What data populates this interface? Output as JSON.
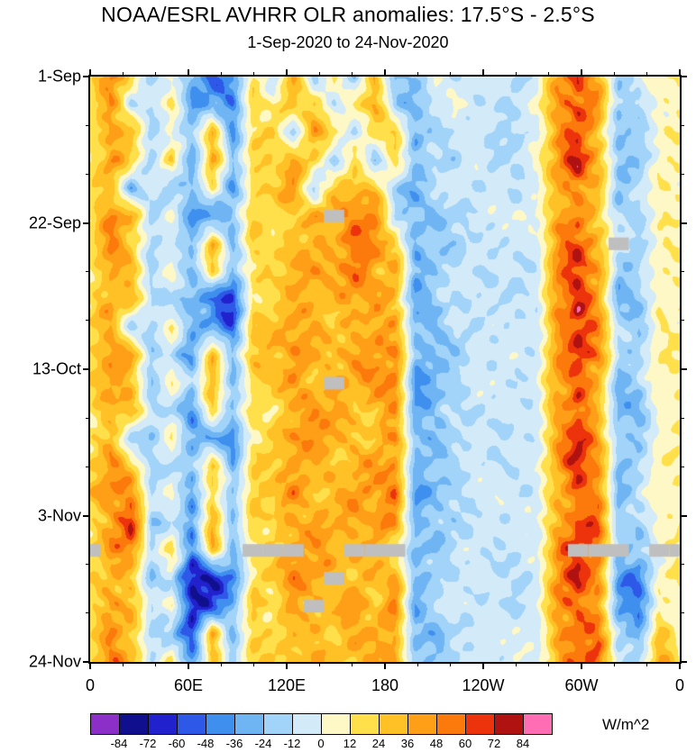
{
  "chart_data": {
    "type": "heatmap",
    "title": "NOAA/ESRL AVHRR OLR anomalies: 17.5°S - 2.5°S",
    "subtitle": "1-Sep-2020 to 24-Nov-2020",
    "xlabel": "",
    "ylabel": "",
    "x_axis": {
      "range_deg": [
        0,
        360
      ],
      "minor_step_deg": 20,
      "ticks": [
        {
          "deg": 0,
          "label": "0"
        },
        {
          "deg": 60,
          "label": "60E"
        },
        {
          "deg": 120,
          "label": "120E"
        },
        {
          "deg": 180,
          "label": "180"
        },
        {
          "deg": 240,
          "label": "120W"
        },
        {
          "deg": 300,
          "label": "60W"
        },
        {
          "deg": 360,
          "label": "0"
        }
      ]
    },
    "y_axis": {
      "range_days": [
        0,
        84
      ],
      "minor_step_days": 7,
      "top_to_bottom": true,
      "ticks": [
        {
          "day": 0,
          "label": "1-Sep"
        },
        {
          "day": 21,
          "label": "22-Sep"
        },
        {
          "day": 42,
          "label": "13-Oct"
        },
        {
          "day": 63,
          "label": "3-Nov"
        },
        {
          "day": 84,
          "label": "24-Nov"
        }
      ]
    },
    "colorbar": {
      "units": "W/m^2",
      "levels": [
        -84,
        -72,
        -60,
        -48,
        -36,
        -24,
        -12,
        0,
        12,
        24,
        36,
        48,
        60,
        72,
        84
      ],
      "colors": [
        "#8B2FC8",
        "#10108F",
        "#2121CD",
        "#2E59E8",
        "#3F8FEF",
        "#6FB5F4",
        "#A2D3F8",
        "#D3EAF9",
        "#FEF8C7",
        "#FFE04A",
        "#FFC125",
        "#FF9E17",
        "#FB7A0B",
        "#ED330C",
        "#B01212",
        "#FF6EB4"
      ],
      "missing_color": "#BFBFBF"
    },
    "grid": {
      "note": "OLR anomaly (W/m^2) estimated on a 30-point longitude (0-360) by 22-step time (1-Sep to 24-Nov-2020) grid; null = missing data (gray)",
      "lon_points": 30,
      "time_points": 22,
      "values": [
        [
          12,
          45,
          20,
          -18,
          8,
          -30,
          -55,
          -40,
          15,
          -12,
          38,
          -15,
          20,
          -25,
          30,
          -35,
          -20,
          8,
          -14,
          -4,
          -10,
          -16,
          -6,
          42,
          72,
          35,
          -22,
          -8,
          6,
          14
        ],
        [
          18,
          55,
          -15,
          -10,
          15,
          -40,
          -25,
          -50,
          22,
          10,
          30,
          25,
          -18,
          15,
          40,
          -20,
          -28,
          -12,
          6,
          -8,
          -14,
          -10,
          4,
          50,
          65,
          45,
          -15,
          -20,
          10,
          8
        ],
        [
          25,
          35,
          40,
          -22,
          -8,
          -15,
          30,
          -35,
          18,
          25,
          -20,
          35,
          22,
          -15,
          25,
          35,
          -35,
          -20,
          -10,
          -6,
          -8,
          -16,
          -4,
          38,
          58,
          25,
          -30,
          -12,
          4,
          12
        ],
        [
          10,
          48,
          25,
          -15,
          20,
          -45,
          40,
          -20,
          28,
          15,
          35,
          20,
          -25,
          30,
          -30,
          25,
          -22,
          -15,
          -18,
          -4,
          -12,
          -8,
          6,
          45,
          70,
          40,
          -18,
          -25,
          8,
          6
        ],
        [
          20,
          30,
          -30,
          -8,
          -18,
          -25,
          20,
          -40,
          12,
          30,
          45,
          -15,
          30,
          20,
          35,
          -25,
          -30,
          -10,
          -8,
          -10,
          -6,
          -14,
          -8,
          35,
          55,
          30,
          -25,
          -15,
          12,
          10
        ],
        [
          15,
          42,
          35,
          -20,
          10,
          -35,
          -45,
          -25,
          20,
          18,
          30,
          40,
          null,
          45,
          50,
          -15,
          -25,
          -22,
          -12,
          -6,
          -10,
          -8,
          4,
          40,
          62,
          20,
          -20,
          -18,
          6,
          14
        ],
        [
          22,
          50,
          20,
          -12,
          -15,
          -20,
          35,
          -30,
          25,
          12,
          40,
          30,
          35,
          55,
          45,
          30,
          -35,
          -15,
          -20,
          -8,
          -6,
          -12,
          -6,
          48,
          68,
          35,
          null,
          -22,
          10,
          8
        ],
        [
          8,
          35,
          45,
          -25,
          12,
          -40,
          25,
          -15,
          15,
          28,
          25,
          45,
          40,
          60,
          35,
          40,
          -28,
          -25,
          -10,
          -12,
          -8,
          -6,
          -10,
          42,
          60,
          45,
          -22,
          -10,
          4,
          12
        ],
        [
          18,
          45,
          30,
          -10,
          -20,
          -30,
          -50,
          -65,
          20,
          20,
          35,
          25,
          30,
          40,
          55,
          25,
          -40,
          -20,
          -15,
          -6,
          -12,
          -10,
          -4,
          38,
          72,
          30,
          -28,
          -18,
          8,
          6
        ],
        [
          25,
          38,
          -20,
          -18,
          15,
          -25,
          -35,
          -55,
          25,
          35,
          45,
          35,
          25,
          30,
          40,
          45,
          -30,
          -28,
          -8,
          -10,
          -6,
          -14,
          -8,
          45,
          75,
          50,
          -15,
          -25,
          12,
          10
        ],
        [
          15,
          30,
          40,
          -15,
          -10,
          -35,
          30,
          -25,
          30,
          25,
          50,
          40,
          35,
          45,
          30,
          50,
          -25,
          -15,
          -20,
          -8,
          -10,
          -8,
          -6,
          50,
          68,
          60,
          -20,
          -15,
          6,
          14
        ],
        [
          20,
          45,
          25,
          -22,
          18,
          -20,
          40,
          -35,
          18,
          30,
          40,
          30,
          null,
          35,
          45,
          40,
          -35,
          -30,
          -12,
          -6,
          -8,
          -12,
          -4,
          42,
          62,
          35,
          -30,
          -20,
          10,
          8
        ],
        [
          12,
          40,
          35,
          -12,
          -15,
          -45,
          25,
          -20,
          22,
          15,
          30,
          45,
          40,
          25,
          35,
          45,
          -40,
          -25,
          -15,
          -10,
          -12,
          -6,
          -8,
          38,
          58,
          25,
          -25,
          -28,
          4,
          12
        ],
        [
          22,
          35,
          -25,
          -20,
          10,
          -30,
          -40,
          -45,
          15,
          25,
          45,
          35,
          30,
          40,
          25,
          55,
          -30,
          -35,
          -10,
          -8,
          -6,
          -10,
          -6,
          45,
          65,
          40,
          -18,
          -15,
          8,
          10
        ],
        [
          18,
          50,
          30,
          -15,
          -20,
          -25,
          35,
          -30,
          28,
          20,
          35,
          40,
          25,
          30,
          45,
          40,
          -25,
          -20,
          -18,
          -6,
          -10,
          -8,
          -4,
          40,
          70,
          55,
          -25,
          -20,
          12,
          6
        ],
        [
          25,
          42,
          45,
          -10,
          15,
          -40,
          20,
          -25,
          20,
          30,
          50,
          30,
          35,
          45,
          30,
          50,
          -35,
          -25,
          -12,
          -10,
          -8,
          -12,
          -8,
          35,
          60,
          45,
          -30,
          -12,
          6,
          10
        ],
        [
          15,
          38,
          68,
          -20,
          -12,
          -30,
          40,
          -35,
          25,
          18,
          40,
          45,
          30,
          35,
          40,
          45,
          -28,
          -18,
          -15,
          -8,
          -12,
          -6,
          -6,
          42,
          72,
          60,
          -20,
          -25,
          10,
          14
        ],
        [
          null,
          45,
          55,
          -15,
          18,
          -45,
          30,
          -20,
          null,
          null,
          null,
          40,
          35,
          null,
          null,
          null,
          -30,
          -28,
          -10,
          -6,
          -8,
          -10,
          -4,
          48,
          null,
          null,
          null,
          -18,
          null,
          null
        ],
        [
          20,
          35,
          30,
          -25,
          -15,
          -88,
          -70,
          -40,
          20,
          25,
          45,
          35,
          null,
          30,
          35,
          40,
          -25,
          -22,
          -14,
          -10,
          -6,
          -8,
          -8,
          40,
          65,
          50,
          -35,
          -45,
          8,
          10
        ],
        [
          15,
          48,
          40,
          -12,
          10,
          -75,
          -55,
          -25,
          28,
          15,
          35,
          null,
          30,
          45,
          25,
          50,
          -35,
          -15,
          -8,
          -6,
          -10,
          -12,
          -6,
          45,
          58,
          35,
          -28,
          -55,
          12,
          6
        ],
        [
          22,
          40,
          25,
          -18,
          -20,
          -50,
          35,
          -30,
          15,
          22,
          40,
          30,
          25,
          35,
          40,
          35,
          -30,
          -25,
          -12,
          -8,
          -6,
          -10,
          -4,
          38,
          68,
          55,
          -22,
          -30,
          25,
          10
        ],
        [
          18,
          45,
          35,
          -10,
          15,
          -35,
          25,
          -20,
          24,
          18,
          35,
          40,
          30,
          25,
          30,
          45,
          -25,
          -18,
          -10,
          -6,
          -8,
          -6,
          -6,
          42,
          62,
          70,
          -18,
          -20,
          40,
          14
        ]
      ]
    }
  }
}
